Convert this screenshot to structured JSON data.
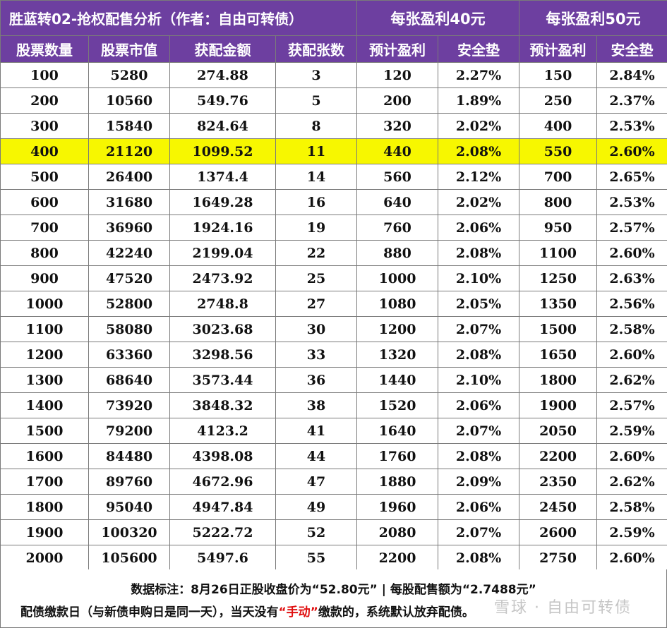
{
  "title": "胜蓝转02-抢权配售分析（作者：自由可转债）",
  "group_headers": {
    "profit40": "每张盈利40元",
    "profit50": "每张盈利50元"
  },
  "columns": [
    "股票数量",
    "股票市值",
    "获配金额",
    "获配张数",
    "预计盈利",
    "安全垫",
    "预计盈利",
    "安全垫"
  ],
  "highlight_color": "#f7f700",
  "header_color": "#6d3fa0",
  "rows": [
    [
      "100",
      "5280",
      "274.88",
      "3",
      "120",
      "2.27%",
      "150",
      "2.84%"
    ],
    [
      "200",
      "10560",
      "549.76",
      "5",
      "200",
      "1.89%",
      "250",
      "2.37%"
    ],
    [
      "300",
      "15840",
      "824.64",
      "8",
      "320",
      "2.02%",
      "400",
      "2.53%"
    ],
    [
      "400",
      "21120",
      "1099.52",
      "11",
      "440",
      "2.08%",
      "550",
      "2.60%"
    ],
    [
      "500",
      "26400",
      "1374.4",
      "14",
      "560",
      "2.12%",
      "700",
      "2.65%"
    ],
    [
      "600",
      "31680",
      "1649.28",
      "16",
      "640",
      "2.02%",
      "800",
      "2.53%"
    ],
    [
      "700",
      "36960",
      "1924.16",
      "19",
      "760",
      "2.06%",
      "950",
      "2.57%"
    ],
    [
      "800",
      "42240",
      "2199.04",
      "22",
      "880",
      "2.08%",
      "1100",
      "2.60%"
    ],
    [
      "900",
      "47520",
      "2473.92",
      "25",
      "1000",
      "2.10%",
      "1250",
      "2.63%"
    ],
    [
      "1000",
      "52800",
      "2748.8",
      "27",
      "1080",
      "2.05%",
      "1350",
      "2.56%"
    ],
    [
      "1100",
      "58080",
      "3023.68",
      "30",
      "1200",
      "2.07%",
      "1500",
      "2.58%"
    ],
    [
      "1200",
      "63360",
      "3298.56",
      "33",
      "1320",
      "2.08%",
      "1650",
      "2.60%"
    ],
    [
      "1300",
      "68640",
      "3573.44",
      "36",
      "1440",
      "2.10%",
      "1800",
      "2.62%"
    ],
    [
      "1400",
      "73920",
      "3848.32",
      "38",
      "1520",
      "2.06%",
      "1900",
      "2.57%"
    ],
    [
      "1500",
      "79200",
      "4123.2",
      "41",
      "1640",
      "2.07%",
      "2050",
      "2.59%"
    ],
    [
      "1600",
      "84480",
      "4398.08",
      "44",
      "1760",
      "2.08%",
      "2200",
      "2.60%"
    ],
    [
      "1700",
      "89760",
      "4672.96",
      "47",
      "1880",
      "2.09%",
      "2350",
      "2.62%"
    ],
    [
      "1800",
      "95040",
      "4947.84",
      "49",
      "1960",
      "2.06%",
      "2450",
      "2.58%"
    ],
    [
      "1900",
      "100320",
      "5222.72",
      "52",
      "2080",
      "2.07%",
      "2600",
      "2.59%"
    ],
    [
      "2000",
      "105600",
      "5497.6",
      "55",
      "2200",
      "2.08%",
      "2750",
      "2.60%"
    ]
  ],
  "highlighted_row": 3,
  "footer": {
    "line1": "数据标注：8月26日正股收盘价为“52.80元” | 每股配售额为“2.7488元”",
    "line2_before": "配债缴款日（与新债申购日是同一天），当天没有",
    "line2_emphasis": "“手动”",
    "line2_after": "缴款的，系统默认放弃配债。"
  },
  "watermark": "雪球 · 自由可转债"
}
